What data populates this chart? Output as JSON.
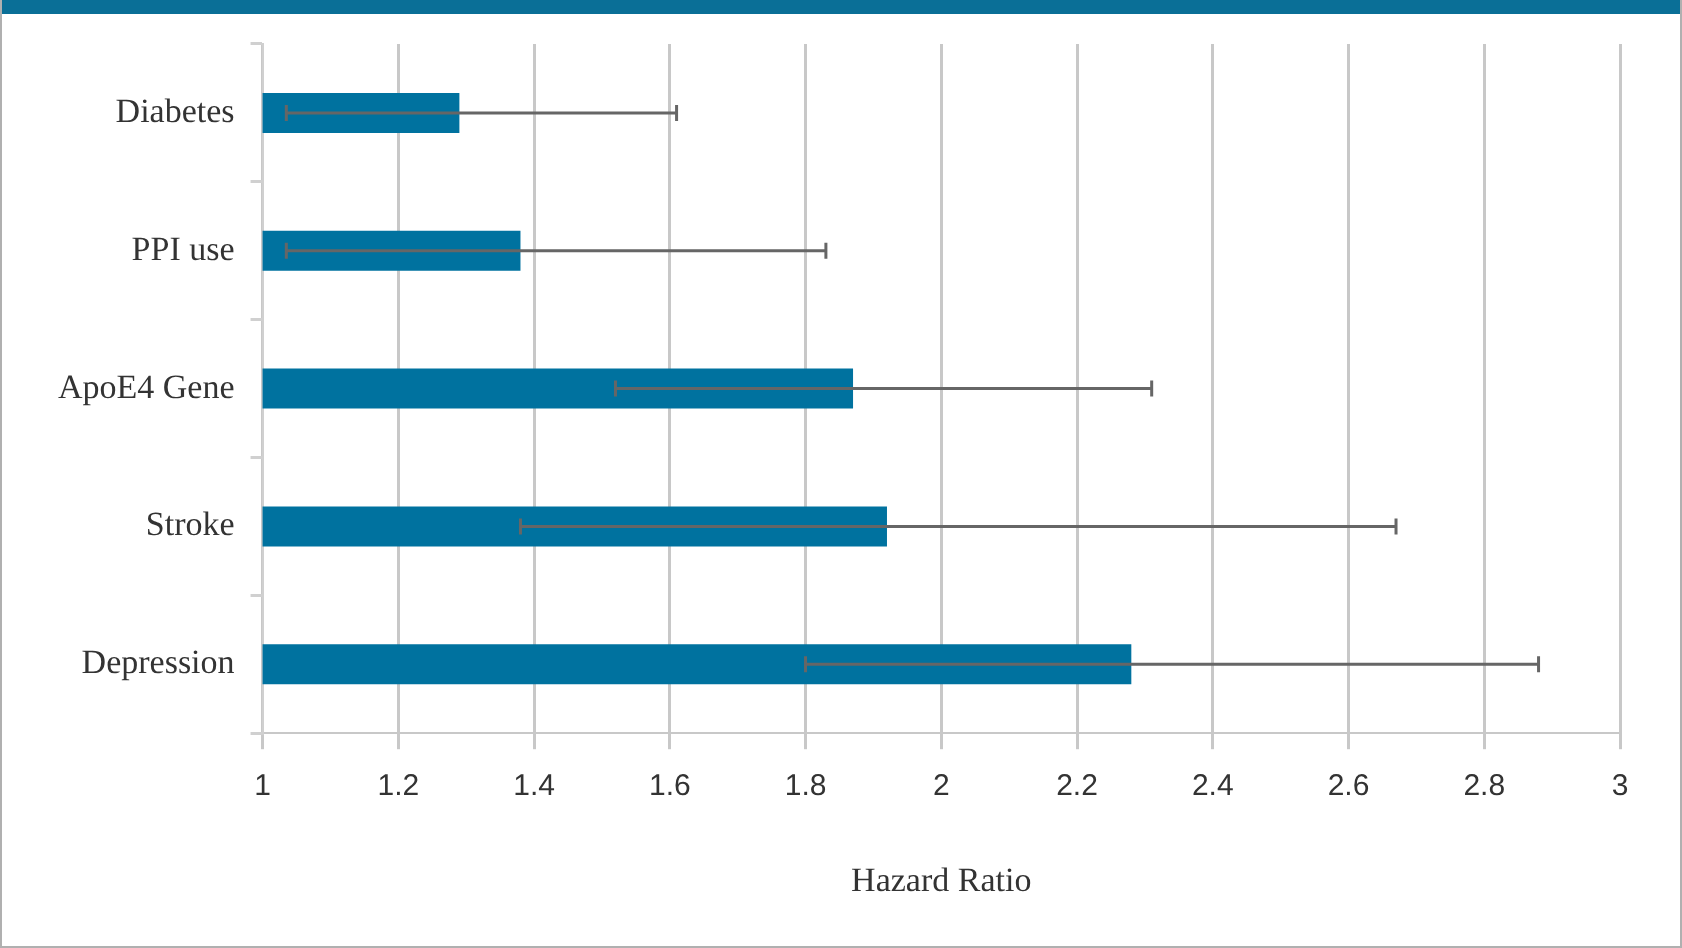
{
  "chart_data": {
    "type": "bar",
    "orientation": "horizontal",
    "xlabel": "Hazard Ratio",
    "categories": [
      "Diabetes",
      "PPI use",
      "ApoE4 Gene",
      "Stroke",
      "Depression"
    ],
    "values": [
      1.29,
      1.38,
      1.87,
      1.92,
      2.28
    ],
    "color": "#00729f",
    "errors": [
      [
        1.035,
        1.61
      ],
      [
        1.035,
        1.83
      ],
      [
        1.52,
        2.31
      ],
      [
        1.38,
        2.67
      ],
      [
        1.8,
        2.88
      ]
    ],
    "xlim": [
      1,
      3
    ],
    "xticks": [
      1,
      1.2,
      1.4,
      1.6,
      1.8,
      2,
      2.2,
      2.4,
      2.6,
      2.8,
      3
    ],
    "grid": "x",
    "legend": false
  }
}
